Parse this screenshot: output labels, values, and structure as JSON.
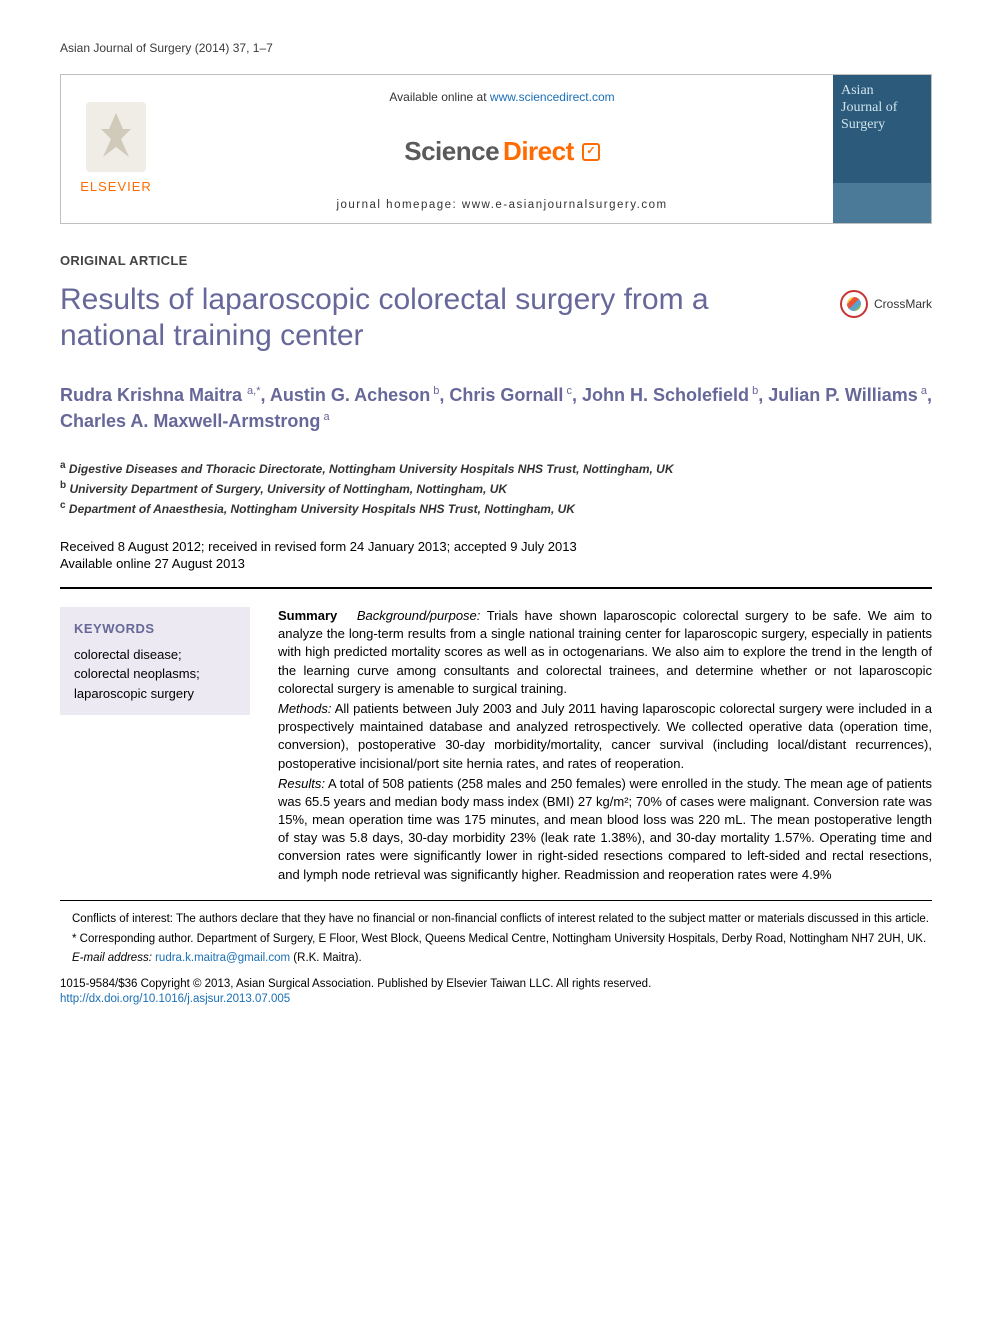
{
  "runningHeader": "Asian Journal of Surgery (2014) 37, 1–7",
  "masthead": {
    "availableText": "Available online at ",
    "availableLink": "www.sciencedirect.com",
    "homepage": "journal homepage: www.e-asianjournalsurgery.com",
    "elsevier": "ELSEVIER",
    "sdScience": "Science",
    "sdDirect": "Direct",
    "coverLine1": "Asian",
    "coverLine2": "Journal of",
    "coverLine3": "Surgery"
  },
  "articleType": "ORIGINAL ARTICLE",
  "title": "Results of laparoscopic colorectal surgery from a national training center",
  "crossmark": "CrossMark",
  "authors": "Rudra Krishna Maitra <sup>a,*</sup>, Austin G. Acheson<sup> b</sup>, Chris Gornall<sup> c</sup>, John H. Scholefield<sup> b</sup>, Julian P. Williams<sup> a</sup>, Charles A. Maxwell-Armstrong<sup> a</sup>",
  "affiliations": {
    "a": "Digestive Diseases and Thoracic Directorate, Nottingham University Hospitals NHS Trust, Nottingham, UK",
    "b": "University Department of Surgery, University of Nottingham, Nottingham, UK",
    "c": "Department of Anaesthesia, Nottingham University Hospitals NHS Trust, Nottingham, UK"
  },
  "dates": {
    "line1": "Received 8 August 2012; received in revised form 24 January 2013; accepted 9 July 2013",
    "line2": "Available online 27 August 2013"
  },
  "keywords": {
    "heading": "KEYWORDS",
    "items": "colorectal disease; colorectal neoplasms; laparoscopic surgery"
  },
  "abstract": {
    "summaryLabel": "Summary",
    "bgLabel": "Background/purpose:",
    "bgText": " Trials have shown laparoscopic colorectal surgery to be safe. We aim to analyze the long-term results from a single national training center for laparoscopic surgery, especially in patients with high predicted mortality scores as well as in octogenarians. We also aim to explore the trend in the length of the learning curve among consultants and colorectal trainees, and determine whether or not laparoscopic colorectal surgery is amenable to surgical training.",
    "methodsLabel": "Methods:",
    "methodsText": " All patients between July 2003 and July 2011 having laparoscopic colorectal surgery were included in a prospectively maintained database and analyzed retrospectively. We collected operative data (operation time, conversion), postoperative 30-day morbidity/mortality, cancer survival (including local/distant recurrences), postoperative incisional/port site hernia rates, and rates of reoperation.",
    "resultsLabel": "Results:",
    "resultsText": " A total of 508 patients (258 males and 250 females) were enrolled in the study. The mean age of patients was 65.5 years and median body mass index (BMI) 27 kg/m²; 70% of cases were malignant. Conversion rate was 15%, mean operation time was 175 minutes, and mean blood loss was 220 mL. The mean postoperative length of stay was 5.8 days, 30-day morbidity 23% (leak rate 1.38%), and 30-day mortality 1.57%. Operating time and conversion rates were significantly lower in right-sided resections compared to left-sided and rectal resections, and lymph node retrieval was significantly higher. Readmission and reoperation rates were 4.9%"
  },
  "footnotes": {
    "conflicts": "Conflicts of interest: The authors declare that they have no financial or non-financial conflicts of interest related to the subject matter or materials discussed in this article.",
    "corresponding": "* Corresponding author. Department of Surgery, E Floor, West Block, Queens Medical Centre, Nottingham University Hospitals, Derby Road, Nottingham NH7 2UH, UK.",
    "emailLabel": "E-mail address: ",
    "email": "rudra.k.maitra@gmail.com",
    "emailSuffix": " (R.K. Maitra)."
  },
  "copyright": {
    "line": "1015-9584/$36 Copyright © 2013, Asian Surgical Association. Published by Elsevier Taiwan LLC. All rights reserved.",
    "doi": "http://dx.doi.org/10.1016/j.asjsur.2013.07.005"
  },
  "colors": {
    "accent": "#676899",
    "link": "#1a6fb5",
    "orange": "#ff6b00",
    "keywordsBg": "#ece9f2",
    "coverBg": "#2b5a7a"
  }
}
